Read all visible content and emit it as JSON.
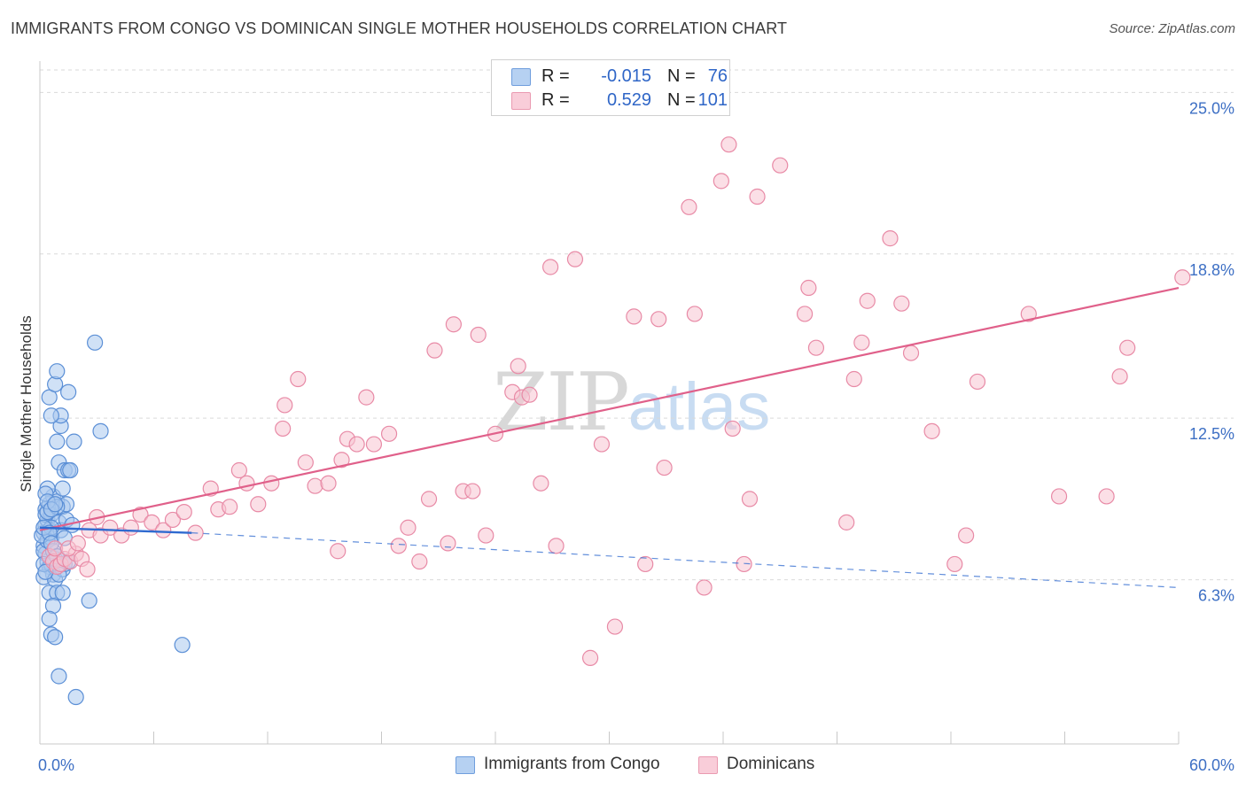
{
  "header": {
    "title": "IMMIGRANTS FROM CONGO VS DOMINICAN SINGLE MOTHER HOUSEHOLDS CORRELATION CHART",
    "source": "Source: ZipAtlas.com"
  },
  "legend": {
    "rows": [
      {
        "r_label": "R =",
        "r_value": "-0.015",
        "n_label": "N =",
        "n_value": "76"
      },
      {
        "r_label": "R =",
        "r_value": "0.529",
        "n_label": "N =",
        "n_value": "101"
      }
    ]
  },
  "watermark": {
    "part1": "ZIP",
    "part2": "atlas"
  },
  "colors": {
    "congo_fill": "#a9c8ef",
    "congo_stroke": "#5b8fd6",
    "congo_line": "#2f6ad0",
    "dom_fill": "#f7c4d2",
    "dom_stroke": "#e88aa6",
    "dom_line": "#e0608a",
    "grid": "#d9d9d9",
    "tick_label": "#3d6fc4"
  },
  "chart_data": {
    "type": "scatter",
    "title": "IMMIGRANTS FROM CONGO VS DOMINICAN SINGLE MOTHER HOUSEHOLDS CORRELATION CHART",
    "xlabel": "",
    "ylabel": "Single Mother Households",
    "xlim": [
      0,
      60
    ],
    "ylim": [
      0,
      26.2
    ],
    "x_tick_labels": [
      "0.0%",
      "60.0%"
    ],
    "y_ticks": [
      6.3,
      12.5,
      18.8,
      25.0
    ],
    "y_tick_labels": [
      "6.3%",
      "12.5%",
      "18.8%",
      "25.0%"
    ],
    "grid": "horizontal dashed",
    "legend_position": "top-center",
    "series": [
      {
        "name": "Immigrants from Congo",
        "R": -0.015,
        "N": 76,
        "trend": {
          "x": [
            0,
            8
          ],
          "y": [
            8.3,
            8.1
          ],
          "dashed_extension_to_x": 60,
          "y_at_end": 6.0
        },
        "points": [
          [
            0.2,
            8.1
          ],
          [
            0.3,
            8.4
          ],
          [
            0.4,
            8.6
          ],
          [
            0.2,
            7.6
          ],
          [
            0.5,
            8.2
          ],
          [
            0.6,
            7.9
          ],
          [
            0.3,
            7.3
          ],
          [
            0.4,
            7.0
          ],
          [
            0.5,
            6.8
          ],
          [
            0.7,
            6.5
          ],
          [
            0.2,
            6.4
          ],
          [
            0.8,
            6.3
          ],
          [
            0.6,
            6.9
          ],
          [
            0.3,
            9.0
          ],
          [
            0.5,
            9.2
          ],
          [
            0.7,
            9.5
          ],
          [
            0.4,
            9.8
          ],
          [
            0.9,
            9.3
          ],
          [
            0.6,
            8.8
          ],
          [
            1.0,
            8.5
          ],
          [
            1.1,
            8.2
          ],
          [
            1.2,
            9.1
          ],
          [
            1.4,
            9.2
          ],
          [
            1.2,
            9.8
          ],
          [
            1.0,
            10.8
          ],
          [
            1.3,
            10.5
          ],
          [
            1.5,
            10.5
          ],
          [
            1.6,
            10.5
          ],
          [
            0.9,
            11.6
          ],
          [
            1.8,
            11.6
          ],
          [
            1.1,
            12.2
          ],
          [
            1.1,
            12.6
          ],
          [
            0.6,
            12.6
          ],
          [
            0.5,
            13.3
          ],
          [
            0.8,
            13.8
          ],
          [
            1.5,
            13.5
          ],
          [
            0.9,
            14.3
          ],
          [
            2.9,
            15.4
          ],
          [
            3.2,
            12.0
          ],
          [
            0.2,
            7.4
          ],
          [
            0.4,
            7.8
          ],
          [
            0.1,
            8.0
          ],
          [
            0.3,
            8.8
          ],
          [
            0.6,
            8.3
          ],
          [
            0.8,
            7.1
          ],
          [
            1.2,
            6.7
          ],
          [
            1.3,
            6.9
          ],
          [
            1.5,
            7.0
          ],
          [
            0.5,
            5.8
          ],
          [
            0.9,
            5.8
          ],
          [
            1.2,
            5.8
          ],
          [
            0.7,
            5.3
          ],
          [
            2.6,
            5.5
          ],
          [
            0.5,
            4.8
          ],
          [
            0.6,
            4.2
          ],
          [
            0.8,
            4.1
          ],
          [
            7.5,
            3.8
          ],
          [
            1.0,
            2.6
          ],
          [
            1.9,
            1.8
          ],
          [
            0.3,
            9.6
          ],
          [
            0.4,
            8.9
          ],
          [
            0.9,
            9.1
          ],
          [
            1.4,
            8.6
          ],
          [
            0.2,
            6.9
          ],
          [
            0.7,
            7.4
          ],
          [
            1.0,
            6.5
          ],
          [
            0.2,
            8.3
          ],
          [
            0.5,
            8.1
          ],
          [
            0.6,
            7.7
          ],
          [
            0.3,
            6.6
          ],
          [
            0.9,
            7.2
          ],
          [
            1.3,
            7.9
          ],
          [
            0.4,
            9.3
          ],
          [
            0.6,
            9.0
          ],
          [
            1.7,
            8.4
          ],
          [
            0.8,
            9.2
          ]
        ]
      },
      {
        "name": "Dominicans",
        "R": 0.529,
        "N": 101,
        "trend": {
          "x": [
            0,
            60
          ],
          "y": [
            8.2,
            17.5
          ]
        },
        "points": [
          [
            0.5,
            7.2
          ],
          [
            0.7,
            7.0
          ],
          [
            0.9,
            6.8
          ],
          [
            1.1,
            6.9
          ],
          [
            1.3,
            7.1
          ],
          [
            1.6,
            7.0
          ],
          [
            1.9,
            7.3
          ],
          [
            2.2,
            7.1
          ],
          [
            2.5,
            6.7
          ],
          [
            0.8,
            7.5
          ],
          [
            1.5,
            7.5
          ],
          [
            2.0,
            7.7
          ],
          [
            2.6,
            8.2
          ],
          [
            3.2,
            8.0
          ],
          [
            3.7,
            8.3
          ],
          [
            4.3,
            8.0
          ],
          [
            4.8,
            8.3
          ],
          [
            5.3,
            8.8
          ],
          [
            5.9,
            8.5
          ],
          [
            6.5,
            8.2
          ],
          [
            7.0,
            8.6
          ],
          [
            7.6,
            8.9
          ],
          [
            8.2,
            8.1
          ],
          [
            9.0,
            9.8
          ],
          [
            9.4,
            9.0
          ],
          [
            10.0,
            9.1
          ],
          [
            10.5,
            10.5
          ],
          [
            10.9,
            10.0
          ],
          [
            11.5,
            9.2
          ],
          [
            12.2,
            10.0
          ],
          [
            12.8,
            12.1
          ],
          [
            12.9,
            13.0
          ],
          [
            13.6,
            14.0
          ],
          [
            14.0,
            10.8
          ],
          [
            14.5,
            9.9
          ],
          [
            15.2,
            10.0
          ],
          [
            15.7,
            7.4
          ],
          [
            15.9,
            10.9
          ],
          [
            16.2,
            11.7
          ],
          [
            16.7,
            11.5
          ],
          [
            17.2,
            13.3
          ],
          [
            17.6,
            11.5
          ],
          [
            18.4,
            11.9
          ],
          [
            18.9,
            7.6
          ],
          [
            19.4,
            8.3
          ],
          [
            20.0,
            7.0
          ],
          [
            20.5,
            9.4
          ],
          [
            20.8,
            15.1
          ],
          [
            21.5,
            7.7
          ],
          [
            21.8,
            16.1
          ],
          [
            22.3,
            9.7
          ],
          [
            22.8,
            9.7
          ],
          [
            23.1,
            15.7
          ],
          [
            23.5,
            8.0
          ],
          [
            24.0,
            11.9
          ],
          [
            24.9,
            13.5
          ],
          [
            25.2,
            14.5
          ],
          [
            25.4,
            13.3
          ],
          [
            25.8,
            13.4
          ],
          [
            26.4,
            10.0
          ],
          [
            26.9,
            18.3
          ],
          [
            27.2,
            7.6
          ],
          [
            28.2,
            18.6
          ],
          [
            29.0,
            3.3
          ],
          [
            29.6,
            11.5
          ],
          [
            30.3,
            4.5
          ],
          [
            31.3,
            16.4
          ],
          [
            31.9,
            6.9
          ],
          [
            32.6,
            16.3
          ],
          [
            32.9,
            10.6
          ],
          [
            34.2,
            20.6
          ],
          [
            34.5,
            16.5
          ],
          [
            35.0,
            6.0
          ],
          [
            35.9,
            21.6
          ],
          [
            36.3,
            23.0
          ],
          [
            36.5,
            12.1
          ],
          [
            37.1,
            6.9
          ],
          [
            37.4,
            9.4
          ],
          [
            37.8,
            21.0
          ],
          [
            39.0,
            22.2
          ],
          [
            40.3,
            16.5
          ],
          [
            40.5,
            17.5
          ],
          [
            40.9,
            15.2
          ],
          [
            42.5,
            8.5
          ],
          [
            42.9,
            14.0
          ],
          [
            43.3,
            15.4
          ],
          [
            43.6,
            17.0
          ],
          [
            44.8,
            19.4
          ],
          [
            45.4,
            16.9
          ],
          [
            45.9,
            15.0
          ],
          [
            47.0,
            12.0
          ],
          [
            48.2,
            6.9
          ],
          [
            48.8,
            8.0
          ],
          [
            49.4,
            13.9
          ],
          [
            52.1,
            16.5
          ],
          [
            53.7,
            9.5
          ],
          [
            56.2,
            9.5
          ],
          [
            56.9,
            14.1
          ],
          [
            57.3,
            15.2
          ],
          [
            60.2,
            17.9
          ],
          [
            3.0,
            8.7
          ]
        ]
      }
    ]
  },
  "bottom_legend": [
    {
      "label": "Immigrants from Congo"
    },
    {
      "label": "Dominicans"
    }
  ]
}
